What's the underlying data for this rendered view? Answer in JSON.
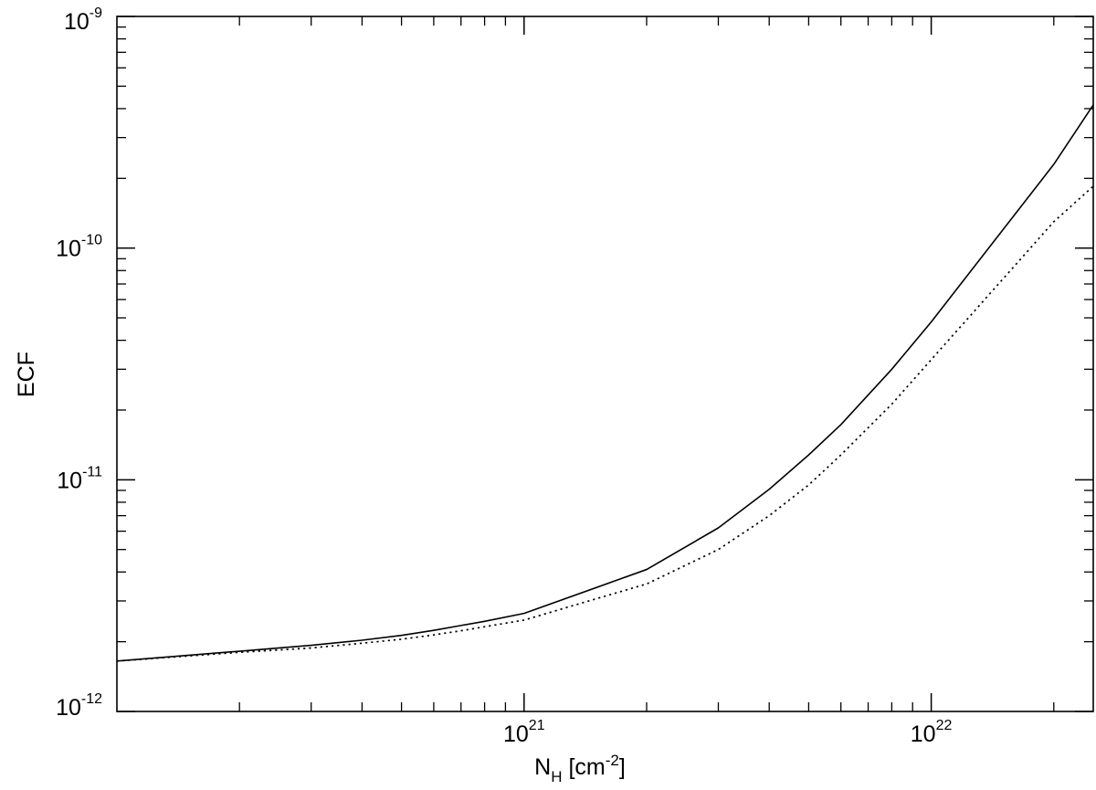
{
  "chart_data": {
    "type": "line",
    "xlabel": {
      "main": "N",
      "sub": "H",
      "unit_pre": " [cm",
      "unit_exp": "-2",
      "unit_post": "]"
    },
    "ylabel": "ECF",
    "x_scale": "log",
    "y_scale": "log",
    "xlim": [
      1e+20,
      2.5e+22
    ],
    "ylim": [
      1e-12,
      1e-09
    ],
    "grid": false,
    "x_ticks": [
      {
        "value": 1e+21,
        "base": "10",
        "exp": "21"
      },
      {
        "value": 1e+22,
        "base": "10",
        "exp": "22"
      }
    ],
    "y_ticks": [
      {
        "value": 1e-12,
        "base": "10",
        "exp": "-12"
      },
      {
        "value": 1e-11,
        "base": "10",
        "exp": "-11"
      },
      {
        "value": 1e-10,
        "base": "10",
        "exp": "-10"
      },
      {
        "value": 1e-09,
        "base": "10",
        "exp": "-9"
      }
    ],
    "series": [
      {
        "style": "solid",
        "x": [
          1e+20,
          2e+20,
          3e+20,
          4e+20,
          5e+20,
          6e+20,
          7e+20,
          8e+20,
          1e+21,
          2e+21,
          3e+21,
          4e+21,
          5e+21,
          6e+21,
          8e+21,
          1e+22,
          2e+22,
          2.5e+22
        ],
        "y": [
          1.65e-12,
          1.82e-12,
          1.93e-12,
          2.03e-12,
          2.13e-12,
          2.24e-12,
          2.35e-12,
          2.45e-12,
          2.65e-12,
          4.1e-12,
          6.2e-12,
          9.1e-12,
          1.28e-11,
          1.73e-11,
          3e-11,
          4.8e-11,
          2.3e-10,
          4.15e-10
        ]
      },
      {
        "style": "dotted",
        "x": [
          1e+20,
          2e+20,
          3e+20,
          4e+20,
          5e+20,
          6e+20,
          7e+20,
          8e+20,
          1e+21,
          2e+21,
          3e+21,
          4e+21,
          5e+21,
          6e+21,
          8e+21,
          1e+22,
          2e+22,
          2.5e+22
        ],
        "y": [
          1.65e-12,
          1.8e-12,
          1.88e-12,
          1.97e-12,
          2.05e-12,
          2.14e-12,
          2.23e-12,
          2.32e-12,
          2.48e-12,
          3.55e-12,
          5e-12,
          7e-12,
          9.5e-12,
          1.28e-11,
          2.12e-11,
          3.3e-11,
          1.3e-10,
          1.85e-10
        ]
      }
    ]
  }
}
